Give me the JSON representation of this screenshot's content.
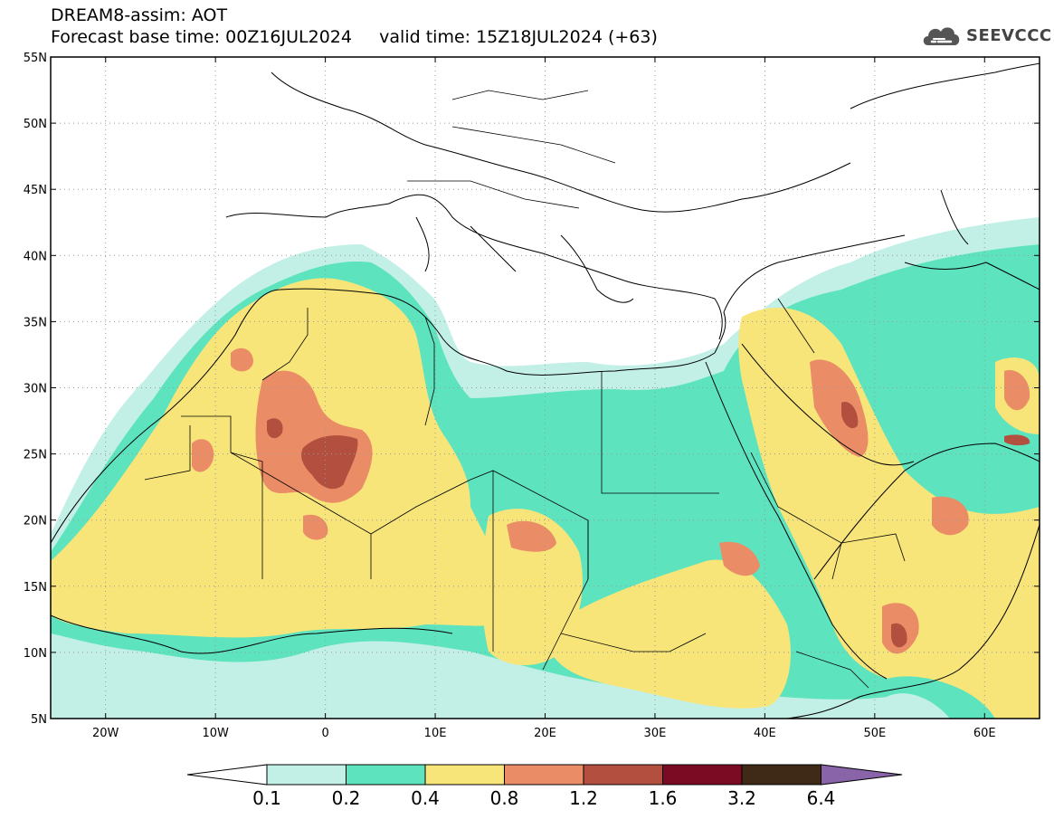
{
  "title": {
    "line1": "DREAM8-assim: AOT",
    "base_time": "Forecast base time: 00Z16JUL2024",
    "valid_time": "valid time: 15Z18JUL2024 (+63)"
  },
  "logo": {
    "text": "SEEVCCC",
    "icon": "cloud-logo-icon"
  },
  "map": {
    "lon_range": [
      -25,
      65
    ],
    "lat_range": [
      5,
      55
    ],
    "lon_ticks": [
      {
        "value": -20,
        "label": "20W"
      },
      {
        "value": -10,
        "label": "10W"
      },
      {
        "value": 0,
        "label": "0"
      },
      {
        "value": 10,
        "label": "10E"
      },
      {
        "value": 20,
        "label": "20E"
      },
      {
        "value": 30,
        "label": "30E"
      },
      {
        "value": 40,
        "label": "40E"
      },
      {
        "value": 50,
        "label": "50E"
      },
      {
        "value": 60,
        "label": "60E"
      }
    ],
    "lat_ticks": [
      {
        "value": 5,
        "label": "5N"
      },
      {
        "value": 10,
        "label": "10N"
      },
      {
        "value": 15,
        "label": "15N"
      },
      {
        "value": 20,
        "label": "20N"
      },
      {
        "value": 25,
        "label": "25N"
      },
      {
        "value": 30,
        "label": "30N"
      },
      {
        "value": 35,
        "label": "35N"
      },
      {
        "value": 40,
        "label": "40N"
      },
      {
        "value": 45,
        "label": "45N"
      },
      {
        "value": 50,
        "label": "50N"
      },
      {
        "value": 55,
        "label": "55N"
      }
    ],
    "grid": true
  },
  "colorbar": {
    "levels": [
      "0.1",
      "0.2",
      "0.4",
      "0.8",
      "1.2",
      "1.6",
      "3.2",
      "6.4"
    ],
    "colors": [
      "#c2efe6",
      "#5ee3bf",
      "#f8e57a",
      "#ea8c66",
      "#b24f3e",
      "#7a0b22",
      "#3e2a17"
    ],
    "under_color": "#ffffff",
    "over_color": "#8a64a8"
  }
}
